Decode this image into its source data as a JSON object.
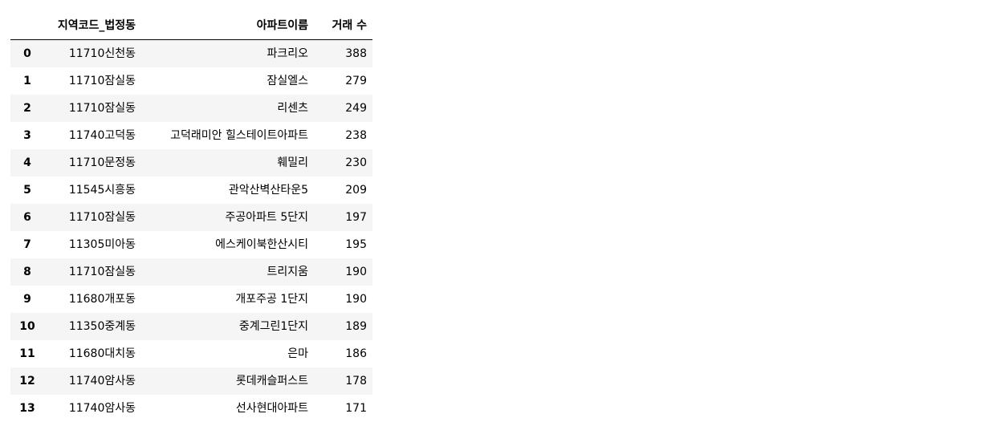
{
  "table": {
    "columns": [
      "지역코드_법정동",
      "아파트이름",
      "거래 수"
    ],
    "rows": [
      {
        "index": "0",
        "region": "11710신천동",
        "apartment": "파크리오",
        "count": "388"
      },
      {
        "index": "1",
        "region": "11710잠실동",
        "apartment": "잠실엘스",
        "count": "279"
      },
      {
        "index": "2",
        "region": "11710잠실동",
        "apartment": "리센츠",
        "count": "249"
      },
      {
        "index": "3",
        "region": "11740고덕동",
        "apartment": "고덕래미안 힐스테이트아파트",
        "count": "238"
      },
      {
        "index": "4",
        "region": "11710문정동",
        "apartment": "훼밀리",
        "count": "230"
      },
      {
        "index": "5",
        "region": "11545시흥동",
        "apartment": "관악산벽산타운5",
        "count": "209"
      },
      {
        "index": "6",
        "region": "11710잠실동",
        "apartment": "주공아파트 5단지",
        "count": "197"
      },
      {
        "index": "7",
        "region": "11305미아동",
        "apartment": "에스케이북한산시티",
        "count": "195"
      },
      {
        "index": "8",
        "region": "11710잠실동",
        "apartment": "트리지움",
        "count": "190"
      },
      {
        "index": "9",
        "region": "11680개포동",
        "apartment": "개포주공 1단지",
        "count": "190"
      },
      {
        "index": "10",
        "region": "11350중계동",
        "apartment": "중계그린1단지",
        "count": "189"
      },
      {
        "index": "11",
        "region": "11680대치동",
        "apartment": "은마",
        "count": "186"
      },
      {
        "index": "12",
        "region": "11740암사동",
        "apartment": "롯데캐슬퍼스트",
        "count": "178"
      },
      {
        "index": "13",
        "region": "11740암사동",
        "apartment": "선사현대아파트",
        "count": "171"
      }
    ]
  }
}
